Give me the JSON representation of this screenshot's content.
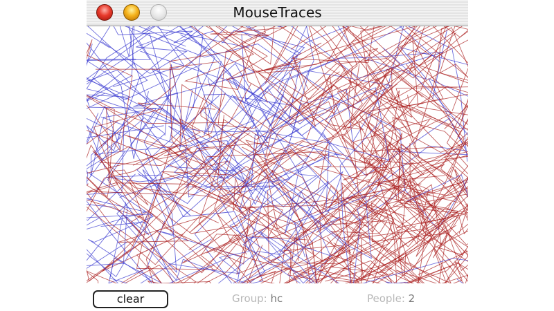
{
  "window": {
    "title": "MouseTraces"
  },
  "controls": {
    "clear_label": "clear",
    "group_label": "Group:",
    "group_value": "hc",
    "people_label": "People:",
    "people_value": "2"
  },
  "traces": {
    "colors": [
      "#a81818",
      "#3a3ad0"
    ]
  }
}
